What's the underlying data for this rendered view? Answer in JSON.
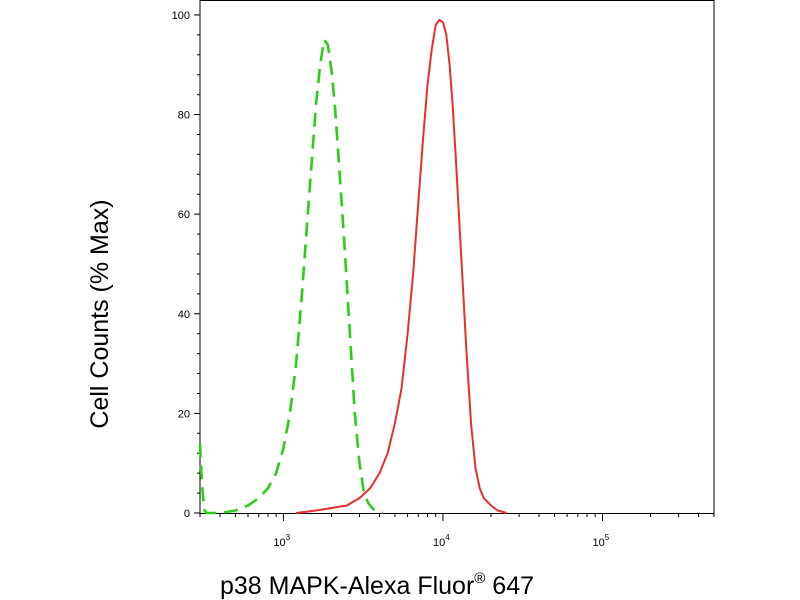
{
  "chart_data": {
    "type": "line",
    "title": "",
    "xlabel": "p38 MAPK-Alexa Fluor",
    "xlabel_superscript": "®",
    "xlabel_suffix": " 647",
    "ylabel": "Cell Counts (% Max)",
    "x_scale": "log",
    "xlim": [
      300,
      500000
    ],
    "ylim": [
      0,
      103
    ],
    "grid": false,
    "legend": "none",
    "y_ticks": [
      0,
      20,
      40,
      60,
      80,
      100
    ],
    "x_major_ticks": [
      {
        "value": 1000,
        "base": "10",
        "exp": "3"
      },
      {
        "value": 10000,
        "base": "10",
        "exp": "4"
      },
      {
        "value": 100000,
        "base": "10",
        "exp": "5"
      }
    ],
    "series": [
      {
        "color": "#2ecc1a",
        "style": "dashed",
        "x": [
          300,
          305,
          312,
          320,
          330,
          350,
          400,
          500,
          600,
          700,
          800,
          900,
          1000,
          1100,
          1200,
          1300,
          1400,
          1500,
          1600,
          1700,
          1800,
          1900,
          2000,
          2100,
          2200,
          2400,
          2600,
          2800,
          3000,
          3200,
          3400,
          3600,
          3800,
          4200
        ],
        "y": [
          14,
          9,
          4,
          0.5,
          0,
          0,
          0,
          0.5,
          1.5,
          3,
          5,
          8,
          13,
          20,
          30,
          43,
          57,
          70,
          82,
          90,
          95,
          94,
          89,
          82,
          73,
          55,
          37,
          20,
          10,
          4,
          2,
          1,
          0.3,
          0
        ]
      },
      {
        "color": "#e8302a",
        "style": "solid",
        "x": [
          1200,
          1600,
          2000,
          2500,
          3000,
          3500,
          4000,
          4500,
          5000,
          5500,
          6000,
          6500,
          7000,
          7500,
          8000,
          8500,
          9000,
          9500,
          10000,
          10500,
          11000,
          11500,
          12000,
          13000,
          14000,
          15000,
          16000,
          17000,
          18000,
          20000,
          22000,
          25000
        ],
        "y": [
          0,
          0.5,
          1,
          1.5,
          3,
          5,
          8,
          12,
          18,
          25,
          36,
          48,
          62,
          75,
          86,
          93,
          98,
          99,
          98.5,
          96,
          90,
          82,
          72,
          52,
          33,
          18,
          9,
          5,
          3,
          1.5,
          0.5,
          0
        ]
      }
    ]
  }
}
